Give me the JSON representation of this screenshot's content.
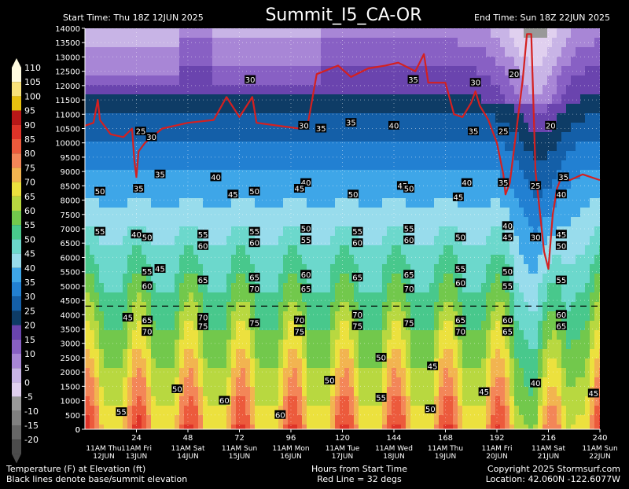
{
  "header": {
    "title": "Summit_I5_CA-OR",
    "start_time": "Start Time: Thu 18Z 12JUN 2025",
    "end_time": "End Time: Sun 18Z 22JUN 2025"
  },
  "footer": {
    "left1": "Temperature (F) at Elevation (ft)",
    "left2": "Black lines denote base/summit elevation",
    "center1": "Hours from Start Time",
    "center2": "Red Line = 32 degs",
    "right1": "Copyright 2025 Stormsurf.com",
    "right2": "Location: 42.060N   -122.6077W"
  },
  "colors": {
    "red_line": "#d42020",
    "dashed_line": "#000000",
    "background": "#000000"
  },
  "chart_data": {
    "type": "heatmap",
    "title": "Summit_I5_CA-OR",
    "xlabel": "Hours from Start Time",
    "ylabel": "",
    "xlim": [
      0,
      240
    ],
    "ylim": [
      0,
      14000
    ],
    "x_ticks": [
      24,
      48,
      72,
      96,
      120,
      144,
      168,
      192,
      216,
      240
    ],
    "y_ticks": [
      0,
      500,
      1000,
      1500,
      2000,
      2500,
      3000,
      3500,
      4000,
      4500,
      5000,
      5500,
      6000,
      6500,
      7000,
      7500,
      8000,
      8500,
      9000,
      9500,
      10000,
      10500,
      11000,
      11500,
      12000,
      12500,
      13000,
      13500,
      14000
    ],
    "day_labels": [
      {
        "x": 0,
        "line1": "11AM Thu",
        "line2": "12JUN"
      },
      {
        "x": 24,
        "line1": "11AM Fri",
        "line2": "13JUN"
      },
      {
        "x": 48,
        "line1": "11AM Sat",
        "line2": "14JUN"
      },
      {
        "x": 72,
        "line1": "11AM Sun",
        "line2": "15JUN"
      },
      {
        "x": 96,
        "line1": "11AM Mon",
        "line2": "16JUN"
      },
      {
        "x": 120,
        "line1": "11AM Tue",
        "line2": "17JUN"
      },
      {
        "x": 144,
        "line1": "11AM Wed",
        "line2": "18JUN"
      },
      {
        "x": 168,
        "line1": "11AM Thu",
        "line2": "19JUN"
      },
      {
        "x": 192,
        "line1": "11AM Fri",
        "line2": "20JUN"
      },
      {
        "x": 216,
        "line1": "11AM Sat",
        "line2": "21JUN"
      },
      {
        "x": 240,
        "line1": "11AM Sun",
        "line2": "22JUN"
      }
    ],
    "colorbar": {
      "labels": [
        "110",
        "105",
        "100",
        "95",
        "90",
        "85",
        "80",
        "75",
        "70",
        "65",
        "60",
        "55",
        "50",
        "45",
        "40",
        "35",
        "30",
        "25",
        "20",
        "15",
        "10",
        "5",
        "0",
        "-5",
        "-10",
        "-15",
        "-20"
      ],
      "colors": [
        "#fffbe0",
        "#f9e27a",
        "#e8c010",
        "#b81818",
        "#de3328",
        "#ec5a3c",
        "#f38658",
        "#f2b450",
        "#ece13e",
        "#b8d840",
        "#72c84c",
        "#48c88c",
        "#6cd8cc",
        "#98dcec",
        "#3ea6e8",
        "#2280d2",
        "#145fa8",
        "#0e3c66",
        "#6a44ae",
        "#8860c4",
        "#a886d6",
        "#c8b4e6",
        "#e0d0ef",
        "#999999",
        "#808080",
        "#666666",
        "#4c4c4c"
      ]
    },
    "summit_elevation": 4300,
    "freezing_line_32F": [
      [
        0,
        10600
      ],
      [
        4,
        10700
      ],
      [
        6,
        11500
      ],
      [
        7,
        10800
      ],
      [
        12,
        10300
      ],
      [
        18,
        10200
      ],
      [
        22,
        10500
      ],
      [
        23,
        9400
      ],
      [
        24,
        8800
      ],
      [
        25,
        9700
      ],
      [
        28,
        10000
      ],
      [
        36,
        10500
      ],
      [
        48,
        10700
      ],
      [
        60,
        10800
      ],
      [
        66,
        11600
      ],
      [
        72,
        10900
      ],
      [
        78,
        11600
      ],
      [
        80,
        10700
      ],
      [
        90,
        10600
      ],
      [
        100,
        10500
      ],
      [
        104,
        10700
      ],
      [
        108,
        12400
      ],
      [
        118,
        12700
      ],
      [
        124,
        12300
      ],
      [
        132,
        12600
      ],
      [
        140,
        12700
      ],
      [
        146,
        12800
      ],
      [
        154,
        12500
      ],
      [
        158,
        13100
      ],
      [
        160,
        12100
      ],
      [
        168,
        12100
      ],
      [
        172,
        11000
      ],
      [
        176,
        10900
      ],
      [
        180,
        11400
      ],
      [
        182,
        11800
      ],
      [
        184,
        11300
      ],
      [
        188,
        10800
      ],
      [
        192,
        10000
      ],
      [
        195,
        8900
      ],
      [
        196,
        8200
      ],
      [
        198,
        8600
      ],
      [
        204,
        12200
      ],
      [
        206,
        13800
      ],
      [
        208,
        13800
      ],
      [
        210,
        9000
      ],
      [
        212,
        7600
      ],
      [
        214,
        6200
      ],
      [
        216,
        5600
      ],
      [
        218,
        7500
      ],
      [
        220,
        8400
      ],
      [
        222,
        8800
      ],
      [
        226,
        8700
      ],
      [
        232,
        8900
      ],
      [
        240,
        8700
      ]
    ],
    "contour_labels": [
      {
        "x": 26,
        "y": 10400,
        "t": "25"
      },
      {
        "x": 31,
        "y": 10200,
        "t": "30"
      },
      {
        "x": 77,
        "y": 12200,
        "t": "30"
      },
      {
        "x": 102,
        "y": 10600,
        "t": "30"
      },
      {
        "x": 110,
        "y": 10500,
        "t": "35"
      },
      {
        "x": 124,
        "y": 10700,
        "t": "35"
      },
      {
        "x": 153,
        "y": 12200,
        "t": "35"
      },
      {
        "x": 182,
        "y": 12100,
        "t": "30"
      },
      {
        "x": 200,
        "y": 12400,
        "t": "20"
      },
      {
        "x": 144,
        "y": 10600,
        "t": "40"
      },
      {
        "x": 181,
        "y": 10400,
        "t": "35"
      },
      {
        "x": 195,
        "y": 10400,
        "t": "25"
      },
      {
        "x": 217,
        "y": 10600,
        "t": "20"
      },
      {
        "x": 35,
        "y": 8900,
        "t": "35"
      },
      {
        "x": 61,
        "y": 8800,
        "t": "40"
      },
      {
        "x": 25,
        "y": 8400,
        "t": "35"
      },
      {
        "x": 7,
        "y": 8300,
        "t": "50"
      },
      {
        "x": 69,
        "y": 8200,
        "t": "45"
      },
      {
        "x": 79,
        "y": 8300,
        "t": "50"
      },
      {
        "x": 103,
        "y": 8600,
        "t": "40"
      },
      {
        "x": 100,
        "y": 8400,
        "t": "45"
      },
      {
        "x": 125,
        "y": 8200,
        "t": "50"
      },
      {
        "x": 148,
        "y": 8500,
        "t": "45"
      },
      {
        "x": 151,
        "y": 8400,
        "t": "50"
      },
      {
        "x": 178,
        "y": 8600,
        "t": "40"
      },
      {
        "x": 174,
        "y": 8100,
        "t": "45"
      },
      {
        "x": 195,
        "y": 8600,
        "t": "35"
      },
      {
        "x": 210,
        "y": 8500,
        "t": "25"
      },
      {
        "x": 223,
        "y": 8800,
        "t": "35"
      },
      {
        "x": 222,
        "y": 8200,
        "t": "40"
      },
      {
        "x": 7,
        "y": 6900,
        "t": "55"
      },
      {
        "x": 24,
        "y": 6800,
        "t": "40"
      },
      {
        "x": 29,
        "y": 6700,
        "t": "50"
      },
      {
        "x": 55,
        "y": 6800,
        "t": "55"
      },
      {
        "x": 79,
        "y": 6900,
        "t": "55"
      },
      {
        "x": 103,
        "y": 7000,
        "t": "50"
      },
      {
        "x": 127,
        "y": 6900,
        "t": "55"
      },
      {
        "x": 151,
        "y": 7000,
        "t": "55"
      },
      {
        "x": 175,
        "y": 6700,
        "t": "50"
      },
      {
        "x": 197,
        "y": 7100,
        "t": "40"
      },
      {
        "x": 197,
        "y": 6700,
        "t": "45"
      },
      {
        "x": 210,
        "y": 6700,
        "t": "30"
      },
      {
        "x": 222,
        "y": 6800,
        "t": "45"
      },
      {
        "x": 222,
        "y": 6400,
        "t": "50"
      },
      {
        "x": 55,
        "y": 6400,
        "t": "60"
      },
      {
        "x": 79,
        "y": 6500,
        "t": "60"
      },
      {
        "x": 103,
        "y": 6600,
        "t": "55"
      },
      {
        "x": 127,
        "y": 6500,
        "t": "60"
      },
      {
        "x": 151,
        "y": 6600,
        "t": "60"
      },
      {
        "x": 29,
        "y": 5500,
        "t": "55"
      },
      {
        "x": 35,
        "y": 5600,
        "t": "45"
      },
      {
        "x": 29,
        "y": 5000,
        "t": "60"
      },
      {
        "x": 55,
        "y": 5200,
        "t": "65"
      },
      {
        "x": 79,
        "y": 5300,
        "t": "65"
      },
      {
        "x": 79,
        "y": 4900,
        "t": "70"
      },
      {
        "x": 103,
        "y": 5400,
        "t": "60"
      },
      {
        "x": 103,
        "y": 4900,
        "t": "65"
      },
      {
        "x": 127,
        "y": 5300,
        "t": "65"
      },
      {
        "x": 151,
        "y": 5400,
        "t": "65"
      },
      {
        "x": 151,
        "y": 4900,
        "t": "70"
      },
      {
        "x": 175,
        "y": 5600,
        "t": "55"
      },
      {
        "x": 175,
        "y": 5100,
        "t": "60"
      },
      {
        "x": 197,
        "y": 5500,
        "t": "50"
      },
      {
        "x": 197,
        "y": 5000,
        "t": "55"
      },
      {
        "x": 222,
        "y": 5200,
        "t": "55"
      },
      {
        "x": 20,
        "y": 3900,
        "t": "45"
      },
      {
        "x": 29,
        "y": 3800,
        "t": "65"
      },
      {
        "x": 29,
        "y": 3400,
        "t": "70"
      },
      {
        "x": 55,
        "y": 3900,
        "t": "70"
      },
      {
        "x": 55,
        "y": 3600,
        "t": "75"
      },
      {
        "x": 79,
        "y": 3700,
        "t": "75"
      },
      {
        "x": 100,
        "y": 3800,
        "t": "70"
      },
      {
        "x": 100,
        "y": 3400,
        "t": "75"
      },
      {
        "x": 127,
        "y": 4000,
        "t": "70"
      },
      {
        "x": 127,
        "y": 3600,
        "t": "75"
      },
      {
        "x": 151,
        "y": 3700,
        "t": "75"
      },
      {
        "x": 175,
        "y": 3800,
        "t": "65"
      },
      {
        "x": 175,
        "y": 3400,
        "t": "70"
      },
      {
        "x": 197,
        "y": 3800,
        "t": "60"
      },
      {
        "x": 197,
        "y": 3400,
        "t": "65"
      },
      {
        "x": 222,
        "y": 3600,
        "t": "65"
      },
      {
        "x": 222,
        "y": 4000,
        "t": "60"
      },
      {
        "x": 138,
        "y": 2500,
        "t": "50"
      },
      {
        "x": 162,
        "y": 2200,
        "t": "45"
      },
      {
        "x": 114,
        "y": 1700,
        "t": "50"
      },
      {
        "x": 43,
        "y": 1400,
        "t": "50"
      },
      {
        "x": 186,
        "y": 1300,
        "t": "45"
      },
      {
        "x": 210,
        "y": 1600,
        "t": "40"
      },
      {
        "x": 237,
        "y": 1250,
        "t": "45"
      },
      {
        "x": 138,
        "y": 1100,
        "t": "55"
      },
      {
        "x": 65,
        "y": 1000,
        "t": "60"
      },
      {
        "x": 17,
        "y": 600,
        "t": "55"
      },
      {
        "x": 91,
        "y": 500,
        "t": "60"
      },
      {
        "x": 161,
        "y": 700,
        "t": "50"
      }
    ]
  }
}
